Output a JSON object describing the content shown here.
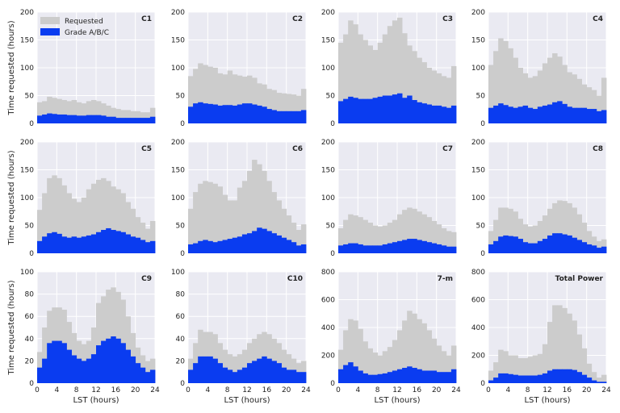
{
  "figure": {
    "xlabel": "LST  (hours)",
    "ylabel": "Time requested (hours)",
    "legend": [
      {
        "label": "Requested",
        "color": "#cccccc"
      },
      {
        "label": "Grade A/B/C",
        "color": "#0a3cf0"
      }
    ],
    "background": "#eaeaf2"
  },
  "chart_data": [
    {
      "type": "bar",
      "title": "C1",
      "xlim": [
        0,
        24
      ],
      "ylim": [
        0,
        200
      ],
      "xticks": [
        0,
        4,
        8,
        12,
        16,
        20,
        24
      ],
      "yticks": [
        0,
        50,
        100,
        150,
        200
      ],
      "series": [
        {
          "name": "Requested",
          "values": [
            38,
            40,
            48,
            46,
            44,
            42,
            40,
            42,
            38,
            36,
            40,
            42,
            40,
            36,
            32,
            28,
            26,
            24,
            24,
            22,
            22,
            20,
            20,
            28
          ]
        },
        {
          "name": "Grade A/B/C",
          "values": [
            14,
            16,
            18,
            17,
            16,
            16,
            15,
            15,
            14,
            14,
            15,
            15,
            15,
            14,
            12,
            12,
            10,
            10,
            10,
            10,
            10,
            10,
            10,
            12
          ]
        }
      ]
    },
    {
      "type": "bar",
      "title": "C2",
      "xlim": [
        0,
        24
      ],
      "ylim": [
        0,
        200
      ],
      "xticks": [
        0,
        4,
        8,
        12,
        16,
        20,
        24
      ],
      "yticks": [
        0,
        50,
        100,
        150,
        200
      ],
      "series": [
        {
          "name": "Requested",
          "values": [
            85,
            98,
            108,
            105,
            102,
            100,
            90,
            88,
            95,
            88,
            86,
            84,
            86,
            82,
            72,
            70,
            62,
            60,
            55,
            54,
            53,
            52,
            50,
            62
          ]
        },
        {
          "name": "Grade A/B/C",
          "values": [
            30,
            36,
            38,
            36,
            35,
            34,
            32,
            33,
            33,
            32,
            34,
            36,
            36,
            34,
            32,
            30,
            26,
            24,
            22,
            22,
            22,
            22,
            22,
            24
          ]
        }
      ]
    },
    {
      "type": "bar",
      "title": "C3",
      "xlim": [
        0,
        24
      ],
      "ylim": [
        0,
        200
      ],
      "xticks": [
        0,
        4,
        8,
        12,
        16,
        20,
        24
      ],
      "yticks": [
        0,
        50,
        100,
        150,
        200
      ],
      "series": [
        {
          "name": "Requested",
          "values": [
            145,
            160,
            185,
            178,
            160,
            150,
            140,
            132,
            145,
            160,
            175,
            185,
            190,
            162,
            140,
            130,
            118,
            110,
            100,
            95,
            90,
            85,
            82,
            103
          ]
        },
        {
          "name": "Grade A/B/C",
          "values": [
            40,
            44,
            48,
            46,
            44,
            44,
            44,
            46,
            48,
            50,
            50,
            52,
            54,
            46,
            50,
            42,
            38,
            36,
            34,
            32,
            32,
            30,
            28,
            32
          ]
        }
      ]
    },
    {
      "type": "bar",
      "title": "C4",
      "xlim": [
        0,
        24
      ],
      "ylim": [
        0,
        200
      ],
      "xticks": [
        0,
        4,
        8,
        12,
        16,
        20,
        24
      ],
      "yticks": [
        0,
        50,
        100,
        150,
        200
      ],
      "series": [
        {
          "name": "Requested",
          "values": [
            105,
            130,
            153,
            148,
            135,
            118,
            100,
            90,
            82,
            85,
            95,
            108,
            118,
            126,
            120,
            105,
            92,
            88,
            80,
            70,
            65,
            60,
            50,
            82
          ]
        },
        {
          "name": "Grade A/B/C",
          "values": [
            28,
            32,
            36,
            33,
            30,
            28,
            30,
            32,
            28,
            26,
            30,
            32,
            34,
            38,
            40,
            35,
            30,
            28,
            28,
            28,
            26,
            26,
            22,
            24
          ]
        }
      ]
    },
    {
      "type": "bar",
      "title": "C5",
      "xlim": [
        0,
        24
      ],
      "ylim": [
        0,
        200
      ],
      "xticks": [
        0,
        4,
        8,
        12,
        16,
        20,
        24
      ],
      "yticks": [
        0,
        50,
        100,
        150,
        200
      ],
      "series": [
        {
          "name": "Requested",
          "values": [
            78,
            108,
            135,
            140,
            135,
            122,
            108,
            98,
            92,
            100,
            115,
            125,
            132,
            135,
            130,
            120,
            115,
            108,
            92,
            80,
            65,
            55,
            44,
            58
          ]
        },
        {
          "name": "Grade A/B/C",
          "values": [
            22,
            30,
            36,
            38,
            35,
            30,
            28,
            30,
            28,
            30,
            32,
            34,
            38,
            42,
            45,
            42,
            40,
            38,
            34,
            30,
            28,
            24,
            20,
            22
          ]
        }
      ]
    },
    {
      "type": "bar",
      "title": "C6",
      "xlim": [
        0,
        24
      ],
      "ylim": [
        0,
        200
      ],
      "xticks": [
        0,
        4,
        8,
        12,
        16,
        20,
        24
      ],
      "yticks": [
        0,
        50,
        100,
        150,
        200
      ],
      "series": [
        {
          "name": "Requested",
          "values": [
            80,
            110,
            125,
            130,
            128,
            125,
            120,
            105,
            95,
            95,
            118,
            130,
            148,
            168,
            160,
            148,
            130,
            110,
            95,
            80,
            68,
            55,
            42,
            52
          ]
        },
        {
          "name": "Grade A/B/C",
          "values": [
            16,
            18,
            22,
            24,
            22,
            20,
            22,
            24,
            26,
            28,
            30,
            34,
            36,
            40,
            46,
            44,
            40,
            36,
            32,
            28,
            24,
            20,
            14,
            16
          ]
        }
      ]
    },
    {
      "type": "bar",
      "title": "C7",
      "xlim": [
        0,
        24
      ],
      "ylim": [
        0,
        200
      ],
      "xticks": [
        0,
        4,
        8,
        12,
        16,
        20,
        24
      ],
      "yticks": [
        0,
        50,
        100,
        150,
        200
      ],
      "series": [
        {
          "name": "Requested",
          "values": [
            45,
            60,
            70,
            68,
            65,
            60,
            55,
            50,
            48,
            50,
            55,
            60,
            70,
            78,
            82,
            80,
            75,
            70,
            65,
            58,
            52,
            45,
            40,
            38
          ]
        },
        {
          "name": "Grade A/B/C",
          "values": [
            14,
            16,
            18,
            18,
            16,
            14,
            14,
            14,
            14,
            16,
            18,
            20,
            22,
            24,
            26,
            26,
            24,
            22,
            20,
            18,
            16,
            14,
            12,
            12
          ]
        }
      ]
    },
    {
      "type": "bar",
      "title": "C8",
      "xlim": [
        0,
        24
      ],
      "ylim": [
        0,
        200
      ],
      "xticks": [
        0,
        4,
        8,
        12,
        16,
        20,
        24
      ],
      "yticks": [
        0,
        50,
        100,
        150,
        200
      ],
      "series": [
        {
          "name": "Requested",
          "values": [
            40,
            60,
            82,
            82,
            80,
            75,
            62,
            52,
            48,
            50,
            58,
            68,
            80,
            90,
            95,
            94,
            90,
            82,
            70,
            55,
            40,
            30,
            22,
            25
          ]
        },
        {
          "name": "Grade A/B/C",
          "values": [
            16,
            22,
            30,
            32,
            31,
            30,
            26,
            20,
            18,
            18,
            22,
            26,
            32,
            36,
            36,
            34,
            32,
            28,
            24,
            20,
            16,
            14,
            10,
            12
          ]
        }
      ]
    },
    {
      "type": "bar",
      "title": "C9",
      "xlim": [
        0,
        24
      ],
      "ylim": [
        0,
        100
      ],
      "xticks": [
        0,
        4,
        8,
        12,
        16,
        20,
        24
      ],
      "yticks": [
        0,
        20,
        40,
        60,
        80,
        100
      ],
      "series": [
        {
          "name": "Requested",
          "values": [
            28,
            50,
            65,
            68,
            68,
            66,
            55,
            45,
            38,
            35,
            38,
            50,
            72,
            78,
            84,
            86,
            82,
            75,
            60,
            45,
            32,
            25,
            20,
            22
          ]
        },
        {
          "name": "Grade A/B/C",
          "values": [
            14,
            22,
            36,
            38,
            38,
            36,
            30,
            25,
            22,
            20,
            22,
            26,
            34,
            38,
            40,
            42,
            40,
            36,
            30,
            24,
            18,
            14,
            10,
            12
          ]
        }
      ]
    },
    {
      "type": "bar",
      "title": "C10",
      "xlim": [
        0,
        24
      ],
      "ylim": [
        0,
        100
      ],
      "xticks": [
        0,
        4,
        8,
        12,
        16,
        20,
        24
      ],
      "yticks": [
        0,
        20,
        40,
        60,
        80,
        100
      ],
      "series": [
        {
          "name": "Requested",
          "values": [
            22,
            36,
            48,
            46,
            46,
            44,
            36,
            30,
            26,
            24,
            26,
            30,
            36,
            40,
            44,
            46,
            44,
            40,
            36,
            30,
            26,
            22,
            18,
            20
          ]
        },
        {
          "name": "Grade A/B/C",
          "values": [
            12,
            18,
            24,
            24,
            24,
            22,
            18,
            14,
            12,
            10,
            12,
            14,
            18,
            20,
            22,
            24,
            22,
            20,
            18,
            14,
            12,
            12,
            10,
            10
          ]
        }
      ]
    },
    {
      "type": "bar",
      "title": "7-m",
      "xlim": [
        0,
        24
      ],
      "ylim": [
        0,
        800
      ],
      "xticks": [
        0,
        4,
        8,
        12,
        16,
        20,
        24
      ],
      "yticks": [
        0,
        200,
        400,
        600,
        800
      ],
      "series": [
        {
          "name": "Requested",
          "values": [
            240,
            380,
            460,
            450,
            390,
            300,
            250,
            220,
            200,
            230,
            260,
            310,
            380,
            450,
            520,
            500,
            460,
            430,
            380,
            320,
            270,
            230,
            200,
            270
          ]
        },
        {
          "name": "Grade A/B/C",
          "values": [
            100,
            130,
            150,
            120,
            90,
            70,
            60,
            60,
            65,
            70,
            80,
            90,
            100,
            110,
            120,
            110,
            100,
            90,
            90,
            90,
            80,
            80,
            80,
            100
          ]
        }
      ]
    },
    {
      "type": "bar",
      "title": "Total Power",
      "xlim": [
        0,
        24
      ],
      "ylim": [
        0,
        800
      ],
      "xticks": [
        0,
        4,
        8,
        12,
        16,
        20,
        24
      ],
      "yticks": [
        0,
        200,
        400,
        600,
        800
      ],
      "series": [
        {
          "name": "Requested",
          "values": [
            90,
            150,
            240,
            230,
            200,
            200,
            180,
            180,
            190,
            200,
            210,
            280,
            440,
            560,
            560,
            540,
            500,
            450,
            350,
            250,
            140,
            80,
            40,
            60
          ]
        },
        {
          "name": "Grade A/B/C",
          "values": [
            20,
            40,
            70,
            70,
            65,
            60,
            55,
            55,
            55,
            55,
            60,
            70,
            90,
            100,
            100,
            100,
            100,
            95,
            80,
            60,
            40,
            20,
            10,
            10
          ]
        }
      ]
    }
  ]
}
